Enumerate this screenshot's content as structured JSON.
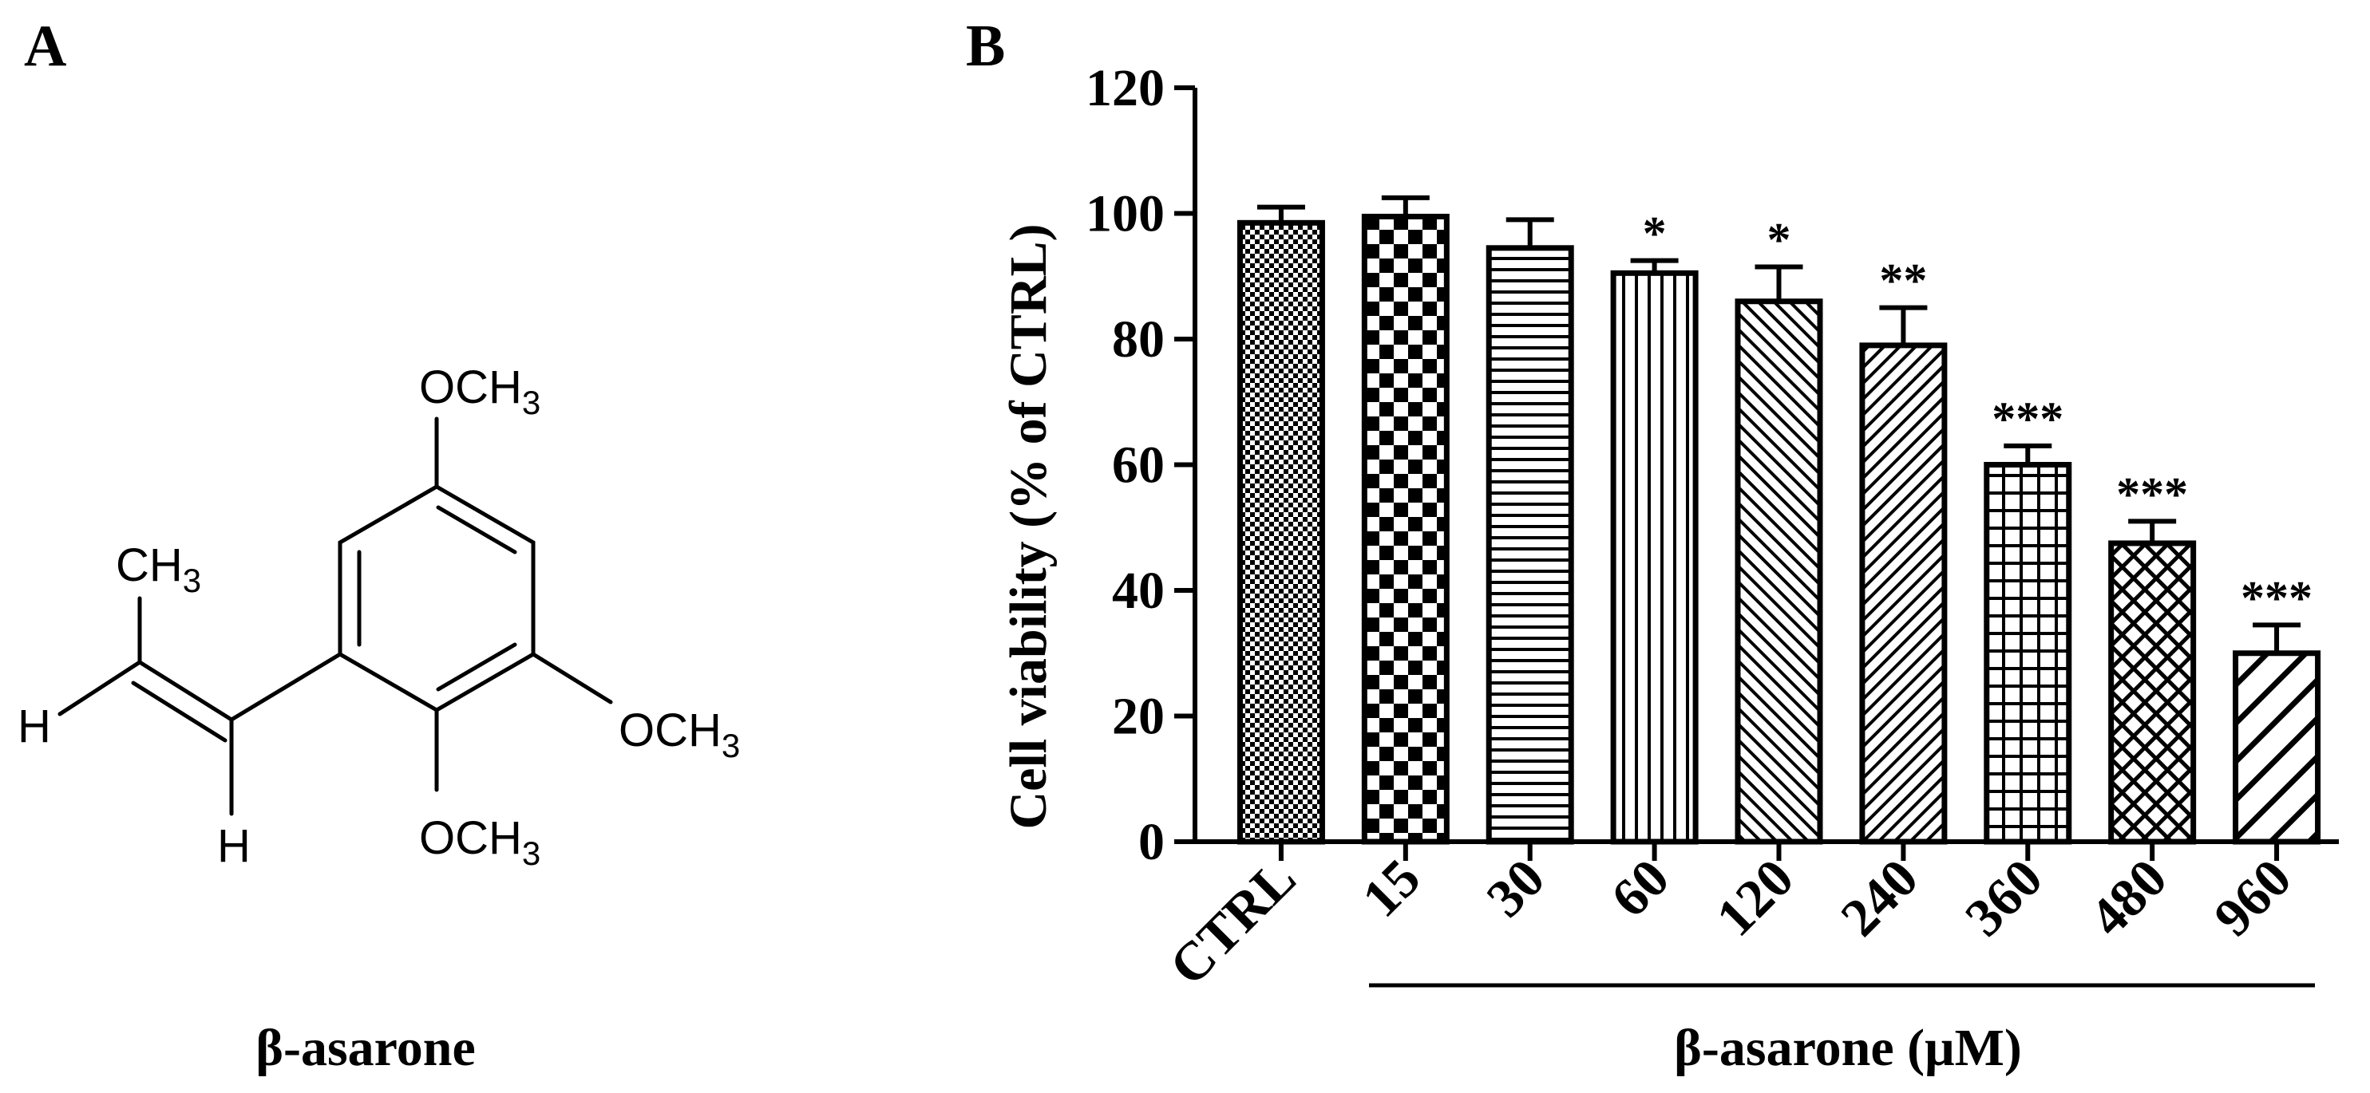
{
  "panel_a": {
    "letter": "A",
    "compound_name": "β-asarone",
    "molecule": {
      "groups": [
        {
          "id": "top",
          "main": "OCH",
          "sub": "3"
        },
        {
          "id": "right",
          "main": "OCH",
          "sub": "3"
        },
        {
          "id": "bottom",
          "main": "OCH",
          "sub": "3"
        },
        {
          "id": "methyl",
          "main": "CH",
          "sub": "3"
        },
        {
          "id": "h_left",
          "main": "H",
          "sub": ""
        },
        {
          "id": "h_bottom",
          "main": "H",
          "sub": ""
        }
      ]
    }
  },
  "panel_b": {
    "letter": "B",
    "xlabel": "β-asarone (μM)"
  },
  "chart_data": {
    "type": "bar",
    "title": "",
    "ylabel": "Cell viability (% of CTRL)",
    "xlabel": "β-asarone (μM)",
    "ylim": [
      0,
      120
    ],
    "yticks": [
      "0",
      "20",
      "40",
      "60",
      "80",
      "100",
      "120"
    ],
    "categories": [
      "CTRL",
      "15",
      "30",
      "60",
      "120",
      "240",
      "360",
      "480",
      "960"
    ],
    "values": [
      98.5,
      99.5,
      94.5,
      90.5,
      86,
      79,
      60,
      47.5,
      30
    ],
    "errors": [
      2.5,
      3,
      4.5,
      2,
      5.5,
      6,
      3,
      3.5,
      4.5
    ],
    "significance": [
      "",
      "",
      "",
      "*",
      "*",
      "**",
      "***",
      "***",
      "***"
    ],
    "patterns": [
      "dots",
      "checker",
      "hlines",
      "vlines",
      "diag-up",
      "diag-down",
      "grid",
      "crosshatch",
      "wide-diag"
    ],
    "colors": {
      "bar_stroke": "#000000",
      "bar_fill_pattern": "#000000"
    }
  }
}
